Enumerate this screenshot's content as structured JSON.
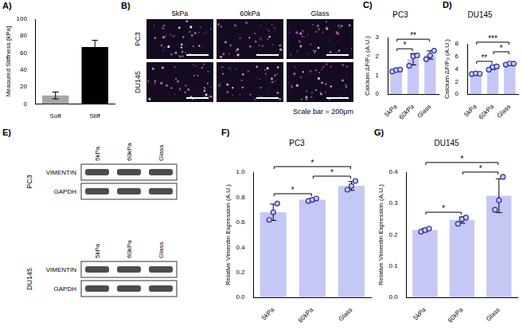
{
  "chart_data": [
    {
      "panel_label": "A)",
      "type": "bar",
      "categories": [
        "Soft",
        "Stiff"
      ],
      "values": [
        10,
        67
      ],
      "errors": [
        4,
        8
      ],
      "colors": [
        "#a6a6a6",
        "#000000"
      ],
      "y_label": "Measured Stiffness [kPa]",
      "ylim": [
        0,
        100
      ],
      "yticks": [
        0,
        20,
        40,
        60,
        80,
        100
      ],
      "grid": false
    },
    {
      "panel_label": "C)",
      "type": "bar",
      "title": "PC3",
      "categories": [
        "5kPa",
        "60kPa",
        "Glass"
      ],
      "values": [
        1.26,
        1.85,
        2.07
      ],
      "errors": [
        0.05,
        0.3,
        0.22
      ],
      "points": [
        [
          1.2,
          1.28,
          1.3
        ],
        [
          1.5,
          2.0,
          2.05
        ],
        [
          1.85,
          2.05,
          2.3
        ]
      ],
      "color": "#c5c8f5",
      "y_label": "Calcium ΔF/F₀ (A.U.)",
      "ylim": [
        0,
        3
      ],
      "yticks": [
        0,
        1,
        2,
        3
      ],
      "significance": [
        {
          "from": "5kPa",
          "to": "60kPa",
          "label": "*"
        },
        {
          "from": "5kPa",
          "to": "Glass",
          "label": "**"
        }
      ],
      "grid": false
    },
    {
      "panel_label": "D)",
      "type": "bar",
      "title": "DU145",
      "categories": [
        "5kPa",
        "60kPa",
        "Glass"
      ],
      "values": [
        3.25,
        4.2,
        4.82
      ],
      "errors": [
        0.05,
        0.26,
        0.1
      ],
      "points": [
        [
          3.2,
          3.3,
          3.25
        ],
        [
          3.9,
          4.3,
          4.4
        ],
        [
          4.7,
          4.9,
          4.85
        ]
      ],
      "color": "#c5c8f5",
      "y_label": "Calcium ΔF/F₀ (A.U.)",
      "ylim": [
        0,
        8
      ],
      "yticks": [
        0,
        2,
        4,
        6,
        8
      ],
      "significance": [
        {
          "from": "5kPa",
          "to": "60kPa",
          "label": "**"
        },
        {
          "from": "60kPa",
          "to": "Glass",
          "label": "*"
        },
        {
          "from": "5kPa",
          "to": "Glass",
          "label": "***"
        }
      ],
      "grid": false
    },
    {
      "panel_label": "F)",
      "type": "bar",
      "title": "PC3",
      "categories": [
        "5kPa",
        "60kPa",
        "Glass"
      ],
      "values": [
        0.68,
        0.78,
        0.89
      ],
      "errors": [
        0.065,
        0.01,
        0.035
      ],
      "points": [
        [
          0.62,
          0.68,
          0.75
        ],
        [
          0.77,
          0.78,
          0.79
        ],
        [
          0.86,
          0.89,
          0.93
        ]
      ],
      "color": "#c5c8f5",
      "y_label": "Relative Vimentin Expression (A.U.)",
      "ylim": [
        0,
        1
      ],
      "yticks": [
        {
          "value": 0,
          "label": "0.0"
        },
        0.2,
        0.4,
        0.6,
        0.8,
        {
          "value": 1,
          "label": "1.0"
        }
      ],
      "significance": [
        {
          "from": "5kPa",
          "to": "60kPa",
          "label": "*"
        },
        {
          "from": "60kPa",
          "to": "Glass",
          "label": "*"
        },
        {
          "from": "5kPa",
          "to": "Glass",
          "label": "*"
        }
      ],
      "grid": false
    },
    {
      "panel_label": "G)",
      "type": "bar",
      "title": "DU145",
      "categories": [
        "5kPa",
        "60kPa",
        "Glass"
      ],
      "values": [
        0.215,
        0.247,
        0.325
      ],
      "errors": [
        0.005,
        0.01,
        0.054
      ],
      "points": [
        [
          0.21,
          0.215,
          0.22
        ],
        [
          0.235,
          0.25,
          0.255
        ],
        [
          0.28,
          0.31,
          0.385
        ]
      ],
      "color": "#c5c8f5",
      "y_label": "Relative Vimentin Expression (A.U.)",
      "ylim": [
        0,
        0.4
      ],
      "yticks": [
        {
          "value": 0,
          "label": "0.0"
        },
        0.1,
        0.2,
        0.3,
        0.4
      ],
      "significance": [
        {
          "from": "5kPa",
          "to": "60kPa",
          "label": "*"
        },
        {
          "from": "60kPa",
          "to": "Glass",
          "label": "*"
        },
        {
          "from": "5kPa",
          "to": "Glass",
          "label": "*"
        }
      ],
      "grid": false
    }
  ],
  "micrographs": {
    "panel_label": "B)",
    "columns": [
      "5kPa",
      "60kPa",
      "Glass"
    ],
    "rows": [
      "PC3",
      "DU145"
    ],
    "scale_bar": "Scale bar = 200μm"
  },
  "western_blot": {
    "panel_label": "E)",
    "columns": [
      "5kPa",
      "60kPa",
      "Glass"
    ],
    "blots": [
      {
        "cell_line": "PC3",
        "bands": [
          "VIMENTIN",
          "GAPDH"
        ]
      },
      {
        "cell_line": "DU145",
        "bands": [
          "VIMENTIN",
          "GAPDH"
        ]
      }
    ]
  }
}
